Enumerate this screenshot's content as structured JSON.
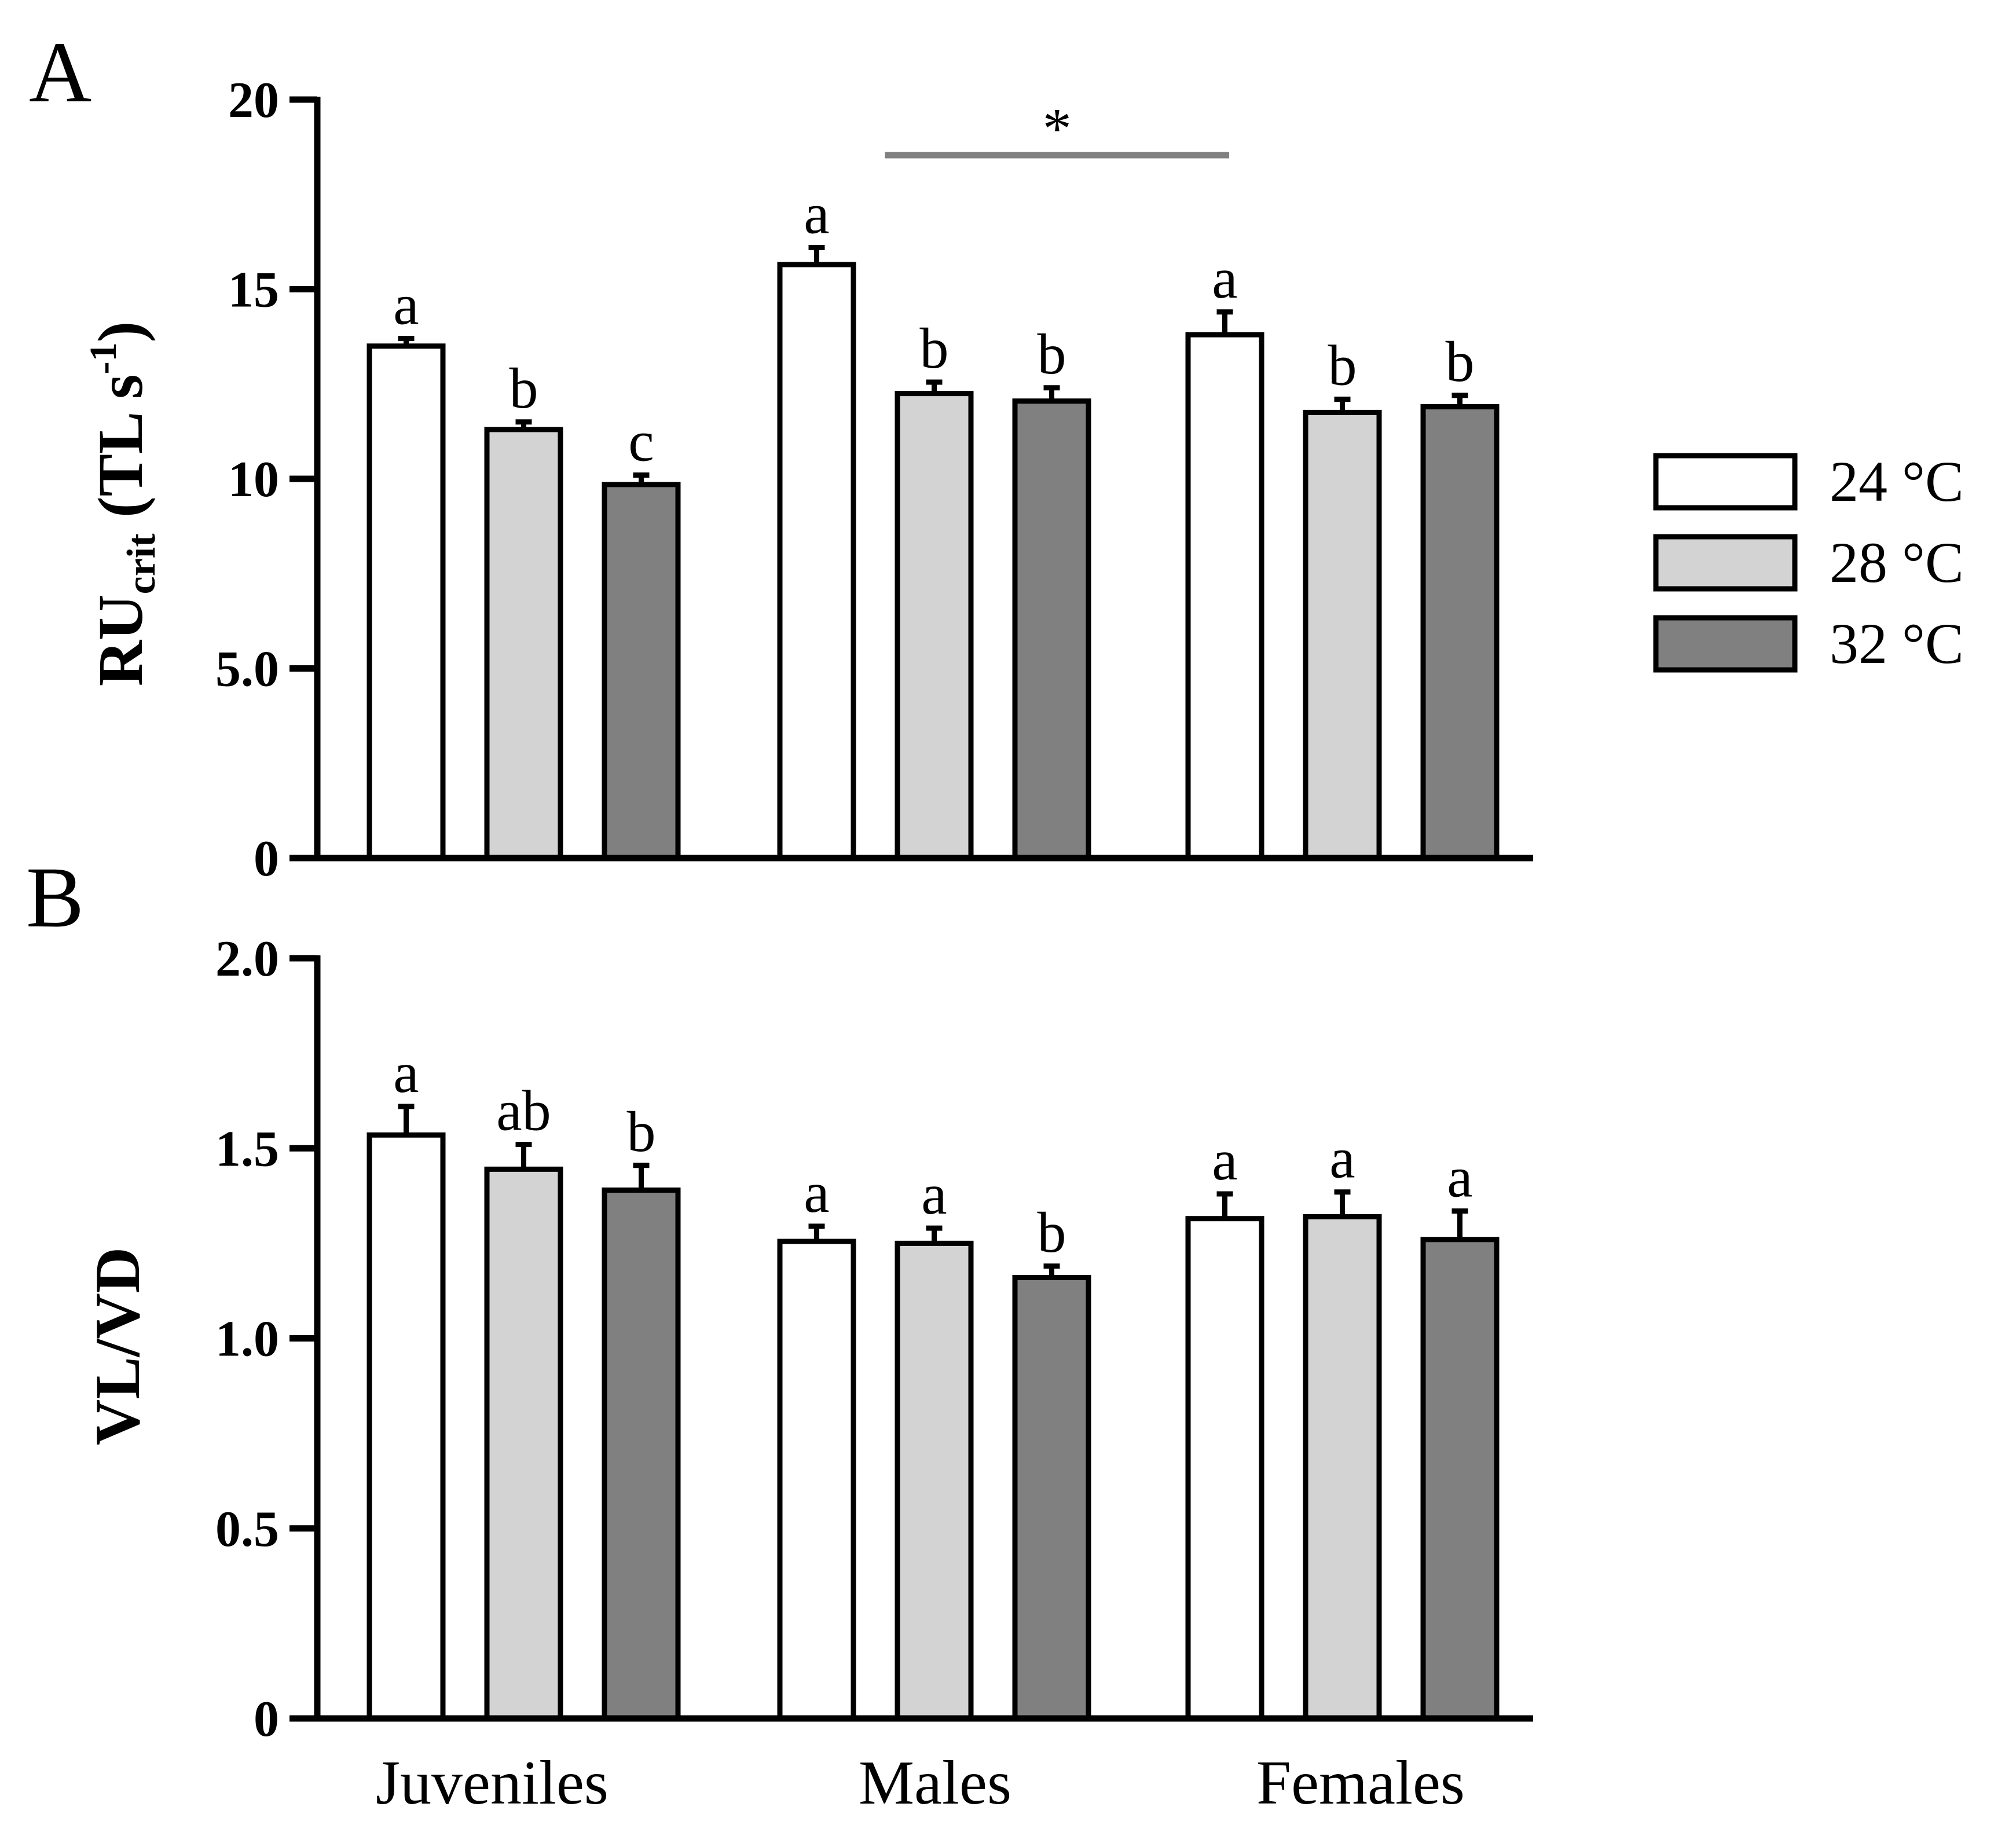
{
  "chart_data": [
    {
      "panel": "A",
      "type": "bar",
      "ylabel": {
        "main": "RU",
        "sub": "crit",
        "unit_open": " (TL s",
        "unit_sup": "-1",
        "unit_close": ")"
      },
      "ylim": [
        0,
        20
      ],
      "yticks": [
        {
          "value": 0,
          "label": "0"
        },
        {
          "value": 5,
          "label": "5.0"
        },
        {
          "value": 10,
          "label": "10"
        },
        {
          "value": 15,
          "label": "15"
        },
        {
          "value": 20,
          "label": "20"
        }
      ],
      "series": [
        {
          "name": "24 °C",
          "values": [
            13.5,
            15.65,
            13.8
          ],
          "errors": [
            0.2,
            0.45,
            0.6
          ],
          "letters": [
            "a",
            "a",
            "a"
          ]
        },
        {
          "name": "28 °C",
          "values": [
            11.3,
            12.25,
            11.75
          ],
          "errors": [
            0.2,
            0.3,
            0.35
          ],
          "letters": [
            "b",
            "b",
            "b"
          ]
        },
        {
          "name": "32 °C",
          "values": [
            9.85,
            12.05,
            11.9
          ],
          "errors": [
            0.25,
            0.35,
            0.3
          ],
          "letters": [
            "c",
            "b",
            "b"
          ]
        }
      ],
      "significance": {
        "label": "*",
        "from_category": 1,
        "to_category": 2
      }
    },
    {
      "panel": "B",
      "type": "bar",
      "ylabel": {
        "main": "VL/VD"
      },
      "ylim": [
        0,
        2.0
      ],
      "yticks": [
        {
          "value": 0,
          "label": "0"
        },
        {
          "value": 0.5,
          "label": "0.5"
        },
        {
          "value": 1.0,
          "label": "1.0"
        },
        {
          "value": 1.5,
          "label": "1.5"
        },
        {
          "value": 2.0,
          "label": "2.0"
        }
      ],
      "series": [
        {
          "name": "24 °C",
          "values": [
            1.535,
            1.255,
            1.315
          ],
          "errors": [
            0.075,
            0.04,
            0.065
          ],
          "letters": [
            "a",
            "a",
            "a"
          ]
        },
        {
          "name": "28 °C",
          "values": [
            1.445,
            1.25,
            1.32
          ],
          "errors": [
            0.065,
            0.04,
            0.065
          ],
          "letters": [
            "ab",
            "a",
            "a"
          ]
        },
        {
          "name": "32 °C",
          "values": [
            1.39,
            1.16,
            1.26
          ],
          "errors": [
            0.065,
            0.03,
            0.075
          ],
          "letters": [
            "b",
            "b",
            "a"
          ]
        }
      ]
    }
  ],
  "categories": [
    "Juveniles",
    "Males",
    "Females"
  ],
  "legend": [
    {
      "label": "24 °C",
      "color": "#ffffff"
    },
    {
      "label": "28 °C",
      "color": "#d3d3d3"
    },
    {
      "label": "32 °C",
      "color": "#808080"
    }
  ],
  "colors": {
    "axis": "#000000",
    "sig_line": "#808080"
  }
}
